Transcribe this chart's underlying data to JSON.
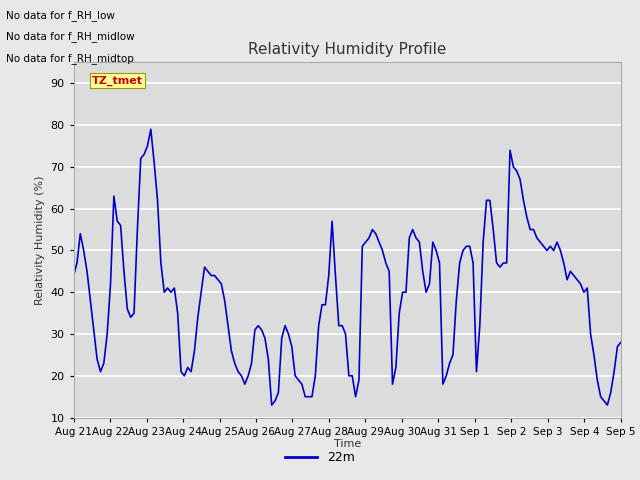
{
  "title": "Relativity Humidity Profile",
  "ylabel": "Relativity Humidity (%)",
  "xlabel": "Time",
  "ylim": [
    10,
    95
  ],
  "yticks": [
    10,
    20,
    30,
    40,
    50,
    60,
    70,
    80,
    90
  ],
  "line_color": "#0000CC",
  "line_width": 1.2,
  "fig_bg_color": "#E8E8E8",
  "plot_bg_color": "#DCDCDC",
  "legend_label": "22m",
  "no_data_texts": [
    "No data for f_RH_low",
    "No data for f_RH_midlow",
    "No data for f_RH_midtop"
  ],
  "tz_label": "TZ_tmet",
  "tz_label_color": "#CC0000",
  "tz_box_facecolor": "#FFFF99",
  "tz_box_edgecolor": "#999900",
  "x_tick_labels": [
    "Aug 21",
    "Aug 22",
    "Aug 23",
    "Aug 24",
    "Aug 25",
    "Aug 26",
    "Aug 27",
    "Aug 28",
    "Aug 29",
    "Aug 30",
    "Aug 31",
    "Sep 1",
    "Sep 2",
    "Sep 3",
    "Sep 4",
    "Sep 5"
  ],
  "rh_values": [
    44,
    47,
    54,
    50,
    45,
    38,
    31,
    24,
    21,
    23,
    30,
    42,
    63,
    57,
    56,
    45,
    36,
    34,
    35,
    55,
    72,
    73,
    75,
    79,
    71,
    62,
    47,
    40,
    41,
    40,
    41,
    35,
    21,
    20,
    22,
    21,
    26,
    34,
    40,
    46,
    45,
    44,
    44,
    43,
    42,
    38,
    32,
    26,
    23,
    21,
    20,
    18,
    20,
    23,
    31,
    32,
    31,
    29,
    24,
    13,
    14,
    16,
    29,
    32,
    30,
    27,
    20,
    19,
    18,
    15,
    15,
    15,
    20,
    32,
    37,
    37,
    44,
    57,
    44,
    32,
    32,
    30,
    20,
    20,
    15,
    19,
    51,
    52,
    53,
    55,
    54,
    52,
    50,
    47,
    45,
    18,
    22,
    35,
    40,
    40,
    53,
    55,
    53,
    52,
    45,
    40,
    42,
    52,
    50,
    47,
    18,
    20,
    23,
    25,
    38,
    47,
    50,
    51,
    51,
    47,
    21,
    32,
    52,
    62,
    62,
    55,
    47,
    46,
    47,
    47,
    74,
    70,
    69,
    67,
    62,
    58,
    55,
    55,
    53,
    52,
    51,
    50,
    51,
    50,
    52,
    50,
    47,
    43,
    45,
    44,
    43,
    42,
    40,
    41,
    30,
    25,
    19,
    15,
    14,
    13,
    16,
    21,
    27,
    28
  ]
}
